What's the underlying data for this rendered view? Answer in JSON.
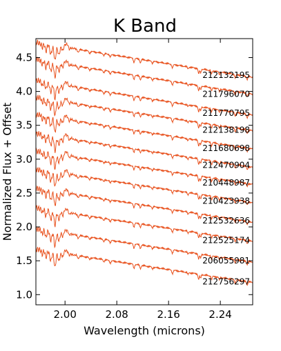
{
  "chart_data": {
    "type": "line",
    "title": "K Band",
    "xlabel": "Wavelength (microns)",
    "ylabel": "Normalized Flux + Offset",
    "xlim": [
      1.955,
      2.29
    ],
    "ylim": [
      0.85,
      4.78
    ],
    "xticks": [
      {
        "value": 2.0,
        "label": "2.00"
      },
      {
        "value": 2.08,
        "label": "2.08"
      },
      {
        "value": 2.16,
        "label": "2.16"
      },
      {
        "value": 2.24,
        "label": "2.24"
      }
    ],
    "yticks": [
      {
        "value": 1.0,
        "label": "1.0"
      },
      {
        "value": 1.5,
        "label": "1.5"
      },
      {
        "value": 2.0,
        "label": "2.0"
      },
      {
        "value": 2.5,
        "label": "2.5"
      },
      {
        "value": 3.0,
        "label": "3.0"
      },
      {
        "value": 3.5,
        "label": "3.5"
      },
      {
        "value": 4.0,
        "label": "4.0"
      },
      {
        "value": 4.5,
        "label": "4.5"
      }
    ],
    "line_color": "#e8501c",
    "grid": false,
    "series": [
      {
        "name": "212132195",
        "start": 4.72,
        "end": 4.21,
        "label_y": 4.24
      },
      {
        "name": "211796070",
        "start": 4.47,
        "end": 3.96,
        "label_y": 3.96
      },
      {
        "name": "211770795",
        "start": 4.16,
        "end": 3.65,
        "label_y": 3.68
      },
      {
        "name": "212138198",
        "start": 3.91,
        "end": 3.42,
        "label_y": 3.43
      },
      {
        "name": "211680698",
        "start": 3.66,
        "end": 3.15,
        "label_y": 3.16
      },
      {
        "name": "212470904",
        "start": 3.38,
        "end": 2.88,
        "label_y": 2.91
      },
      {
        "name": "210448987",
        "start": 3.12,
        "end": 2.63,
        "label_y": 2.65
      },
      {
        "name": "210423938",
        "start": 2.85,
        "end": 2.36,
        "label_y": 2.38
      },
      {
        "name": "212532636",
        "start": 2.57,
        "end": 2.07,
        "label_y": 2.09
      },
      {
        "name": "212525174",
        "start": 2.28,
        "end": 1.79,
        "label_y": 1.8
      },
      {
        "name": "206055981",
        "start": 1.97,
        "end": 1.48,
        "label_y": 1.5
      },
      {
        "name": "212756297",
        "start": 1.67,
        "end": 1.18,
        "label_y": 1.19
      }
    ]
  }
}
